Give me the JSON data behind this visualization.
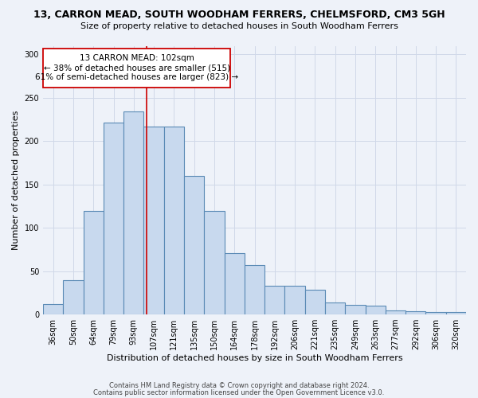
{
  "title": "13, CARRON MEAD, SOUTH WOODHAM FERRERS, CHELMSFORD, CM3 5GH",
  "subtitle": "Size of property relative to detached houses in South Woodham Ferrers",
  "xlabel": "Distribution of detached houses by size in South Woodham Ferrers",
  "ylabel": "Number of detached properties",
  "footer1": "Contains HM Land Registry data © Crown copyright and database right 2024.",
  "footer2": "Contains public sector information licensed under the Open Government Licence v3.0.",
  "categories": [
    "36sqm",
    "50sqm",
    "64sqm",
    "79sqm",
    "93sqm",
    "107sqm",
    "121sqm",
    "135sqm",
    "150sqm",
    "164sqm",
    "178sqm",
    "192sqm",
    "206sqm",
    "221sqm",
    "235sqm",
    "249sqm",
    "263sqm",
    "277sqm",
    "292sqm",
    "306sqm",
    "320sqm"
  ],
  "values": [
    12,
    40,
    119,
    221,
    234,
    217,
    217,
    160,
    119,
    71,
    57,
    33,
    33,
    29,
    14,
    11,
    10,
    5,
    4,
    3,
    3
  ],
  "bar_color": "#c8d9ee",
  "bar_edge_color": "#5a8ab5",
  "grid_color": "#d0d8e8",
  "bg_color": "#eef2f9",
  "annotation_box_color": "#ffffff",
  "annotation_border_color": "#cc0000",
  "vline_color": "#cc0000",
  "annotation_title": "13 CARRON MEAD: 102sqm",
  "annotation_line1": "← 38% of detached houses are smaller (515)",
  "annotation_line2": "61% of semi-detached houses are larger (823) →",
  "ylim": [
    0,
    310
  ],
  "yticks": [
    0,
    50,
    100,
    150,
    200,
    250,
    300
  ],
  "title_fontsize": 9,
  "subtitle_fontsize": 8,
  "ylabel_fontsize": 8,
  "xlabel_fontsize": 8,
  "tick_fontsize": 7,
  "footer_fontsize": 6
}
